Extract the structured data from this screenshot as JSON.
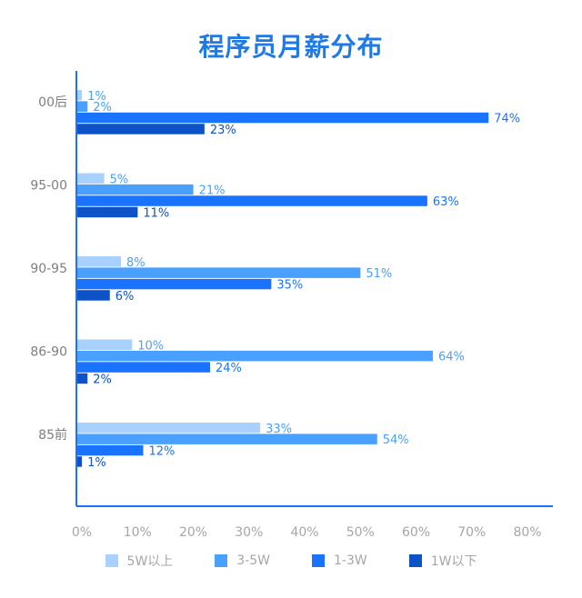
{
  "chart_data": {
    "type": "bar",
    "orientation": "horizontal",
    "title": "程序员月薪分布",
    "categories": [
      "00后",
      "95-00",
      "90-95",
      "86-90",
      "85前"
    ],
    "series": [
      {
        "name": "5W以上",
        "color": "#a9d1ff",
        "values": [
          1,
          5,
          8,
          10,
          33
        ]
      },
      {
        "name": "3-5W",
        "color": "#4aa0ff",
        "values": [
          2,
          21,
          51,
          64,
          54
        ]
      },
      {
        "name": "1-3W",
        "color": "#1a73ff",
        "values": [
          74,
          63,
          35,
          24,
          12
        ]
      },
      {
        "name": "1W以下",
        "color": "#0d52c6",
        "values": [
          23,
          11,
          6,
          2,
          1
        ]
      }
    ],
    "value_suffix": "%",
    "xlim": [
      0,
      80
    ],
    "xticks": [
      "0%",
      "10%",
      "20%",
      "30%",
      "40%",
      "50%",
      "60%",
      "70%",
      "80%"
    ],
    "grid": false,
    "legend_position": "bottom"
  }
}
